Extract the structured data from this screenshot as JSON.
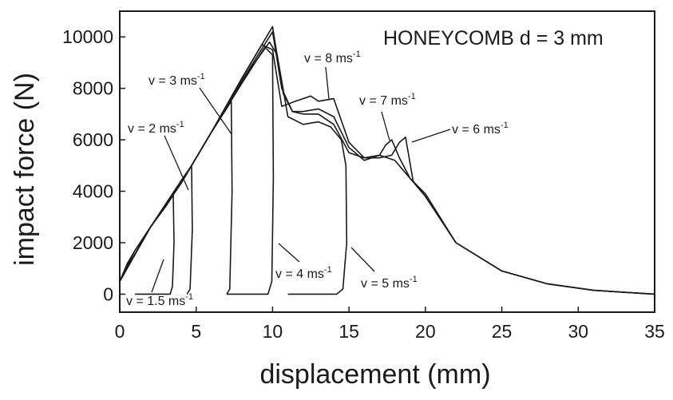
{
  "chart_data": {
    "type": "line",
    "title": "",
    "inset_label": "HONEYCOMB d = 3 mm",
    "xlabel": "displacement (mm)",
    "ylabel": "impact force (N)",
    "xlim": [
      0,
      35
    ],
    "ylim": [
      -700,
      11000
    ],
    "xticks": [
      0,
      5,
      10,
      15,
      20,
      25,
      30,
      35
    ],
    "yticks": [
      0,
      2000,
      4000,
      6000,
      8000,
      10000
    ],
    "grid": false,
    "series": [
      {
        "name": "v = 1.5 ms-1",
        "x": [
          0,
          0.5,
          1,
          2,
          3,
          3.5,
          3.55,
          3.45,
          3.3,
          1
        ],
        "y": [
          500,
          1200,
          1700,
          2600,
          3400,
          3850,
          2000,
          300,
          0,
          0
        ]
      },
      {
        "name": "v = 2 ms-1",
        "x": [
          0,
          1,
          2,
          3,
          4,
          4.7,
          4.75,
          4.6,
          4.4
        ],
        "y": [
          500,
          1700,
          2600,
          3500,
          4400,
          5000,
          2500,
          200,
          0
        ]
      },
      {
        "name": "v = 3 ms-1",
        "x": [
          0,
          2,
          4,
          6,
          7.3,
          7.35,
          7.2,
          7.0
        ],
        "y": [
          500,
          2600,
          4300,
          6300,
          7500,
          4000,
          200,
          0
        ]
      },
      {
        "name": "v = 4 ms-1",
        "x": [
          0,
          2,
          4,
          6,
          8,
          9.5,
          10.0,
          10.05,
          9.95,
          9.7,
          7.0
        ],
        "y": [
          500,
          2600,
          4300,
          6300,
          8200,
          9600,
          9300,
          4500,
          500,
          0,
          0
        ]
      },
      {
        "name": "v = 5 ms-1",
        "x": [
          0,
          2,
          4,
          6,
          8,
          9.8,
          10.3,
          11,
          12,
          13,
          13.8,
          14.5,
          14.8,
          14.85,
          14.6,
          14.2,
          11
        ],
        "y": [
          500,
          2600,
          4300,
          6300,
          8300,
          9800,
          9300,
          6900,
          6600,
          6700,
          6500,
          6000,
          5000,
          2000,
          200,
          0,
          0
        ]
      },
      {
        "name": "v = 6 ms-1",
        "x": [
          0,
          2,
          4,
          6,
          8,
          10,
          10.7,
          11.3,
          12,
          13,
          14,
          15,
          16,
          17,
          17.8,
          18.3,
          18.7,
          19.2,
          20,
          22,
          25,
          28,
          31,
          35
        ],
        "y": [
          500,
          2600,
          4300,
          6300,
          8400,
          10400,
          7800,
          7100,
          7000,
          7000,
          6600,
          5500,
          5300,
          5300,
          5400,
          5900,
          6100,
          4400,
          3800,
          2000,
          900,
          400,
          150,
          0
        ]
      },
      {
        "name": "v = 7 ms-1",
        "x": [
          0,
          2,
          4,
          6,
          8,
          10,
          10.6,
          11.3,
          12,
          13,
          14,
          15,
          16,
          17,
          17.4,
          17.8,
          18.3,
          19,
          20,
          22,
          25,
          28,
          31,
          35
        ],
        "y": [
          500,
          2600,
          4300,
          6300,
          8300,
          10200,
          8000,
          7100,
          7100,
          7200,
          6900,
          5700,
          5200,
          5400,
          5800,
          6000,
          5300,
          4500,
          3900,
          2000,
          900,
          400,
          150,
          0
        ]
      },
      {
        "name": "v = 8 ms-1",
        "x": [
          0,
          2,
          4,
          6,
          8,
          9.3,
          10,
          10.6,
          11.5,
          12.5,
          13,
          14,
          15,
          16,
          17,
          18,
          19,
          20,
          22,
          25,
          28,
          31,
          35
        ],
        "y": [
          500,
          2600,
          4300,
          6300,
          8400,
          9700,
          9500,
          7300,
          7500,
          7700,
          7500,
          7600,
          5900,
          5300,
          5400,
          5200,
          4500,
          3800,
          2000,
          900,
          400,
          150,
          0
        ]
      }
    ],
    "annotations": [
      {
        "text": "v = 1.5 ms",
        "sup": "-1"
      },
      {
        "text": "v = 2 ms",
        "sup": "-1"
      },
      {
        "text": "v = 3 ms",
        "sup": "-1"
      },
      {
        "text": "v = 4 ms",
        "sup": "-1"
      },
      {
        "text": "v = 5 ms",
        "sup": "-1"
      },
      {
        "text": "v = 6 ms",
        "sup": "-1"
      },
      {
        "text": "v = 7 ms",
        "sup": "-1"
      },
      {
        "text": "v = 8 ms",
        "sup": "-1"
      }
    ]
  }
}
